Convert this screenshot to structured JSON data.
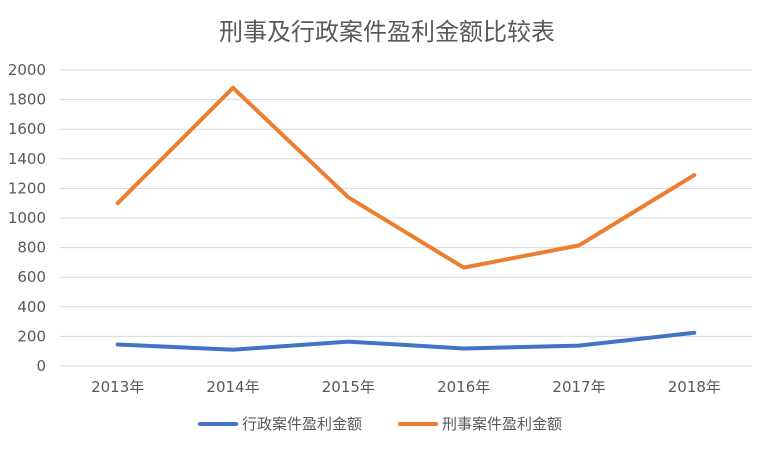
{
  "chart_data": {
    "type": "line",
    "title": "刑事及行政案件盈利金额比较表",
    "xlabel": "",
    "ylabel": "",
    "categories": [
      "2013年",
      "2014年",
      "2015年",
      "2016年",
      "2017年",
      "2018年"
    ],
    "ylim": [
      0,
      2000
    ],
    "yticks": [
      0,
      200,
      400,
      600,
      800,
      1000,
      1200,
      1400,
      1600,
      1800,
      2000
    ],
    "grid": true,
    "legend_position": "bottom",
    "series": [
      {
        "name": "行政案件盈利金额",
        "color": "#4472c4",
        "values": [
          145,
          110,
          165,
          118,
          138,
          225
        ]
      },
      {
        "name": "刑事案件盈利金额",
        "color": "#ed7d31",
        "values": [
          1100,
          1880,
          1140,
          665,
          815,
          1290
        ]
      }
    ]
  }
}
